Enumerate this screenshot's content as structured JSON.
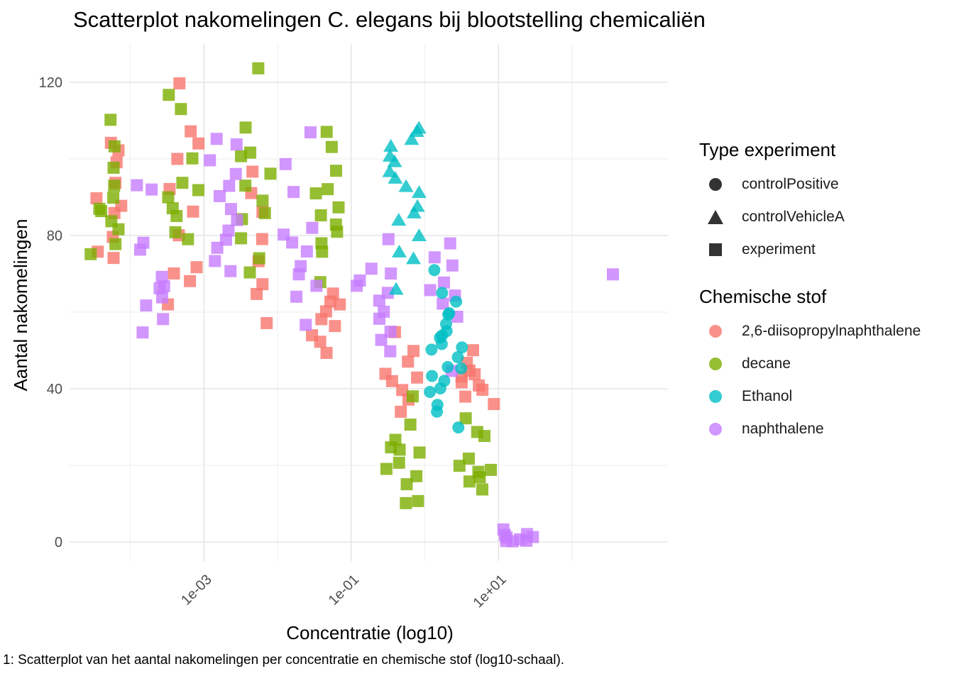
{
  "chart_data": {
    "type": "scatter",
    "title": "Scatterplot nakomelingen C. elegans bij blootstelling chemicaliën",
    "xlabel": "Concentratie (log10)",
    "ylabel": "Aantal nakomelingen",
    "caption": "1: Scatterplot van het aantal nakomelingen per concentratie en chemische stof (log10-schaal).",
    "x_scale": "log10",
    "xlim": [
      1.5e-05,
      2000
    ],
    "ylim": [
      -5,
      130
    ],
    "x_ticks": [
      0.001,
      0.1,
      10
    ],
    "x_tick_labels": [
      "1e-03",
      "1e-01",
      "1e+01"
    ],
    "y_ticks": [
      0,
      40,
      80,
      120
    ],
    "y_tick_labels": [
      "0",
      "40",
      "80",
      "120"
    ],
    "grid": true,
    "shape_legend": {
      "title": "Type experiment",
      "items": [
        {
          "label": "controlPositive",
          "shape": "circle"
        },
        {
          "label": "controlVehicleA",
          "shape": "triangle"
        },
        {
          "label": "experiment",
          "shape": "square"
        }
      ]
    },
    "color_legend": {
      "title": "Chemische stof",
      "items": [
        {
          "label": "2,6-diisopropylnaphthalene",
          "color": "#F8766D"
        },
        {
          "label": "decane",
          "color": "#7CAE00"
        },
        {
          "label": "Ethanol",
          "color": "#00BFC4"
        },
        {
          "label": "naphthalene",
          "color": "#C77CFF"
        }
      ]
    },
    "series": [
      {
        "name": "2,6-diisopropylnaphthalene",
        "color": "#F8766D",
        "shape": "square",
        "points": [
          [
            5e-05,
            74
          ],
          [
            5e-05,
            80
          ],
          [
            5e-05,
            86
          ],
          [
            5e-05,
            90
          ],
          [
            5e-05,
            94
          ],
          [
            5e-05,
            99
          ],
          [
            5e-05,
            102
          ],
          [
            5e-05,
            104
          ],
          [
            5e-05,
            76
          ],
          [
            5e-05,
            88
          ],
          [
            0.0005,
            62
          ],
          [
            0.0005,
            68
          ],
          [
            0.0005,
            70
          ],
          [
            0.0005,
            72
          ],
          [
            0.0005,
            80
          ],
          [
            0.0005,
            86
          ],
          [
            0.0005,
            92
          ],
          [
            0.0005,
            100
          ],
          [
            0.0005,
            104
          ],
          [
            0.0005,
            107
          ],
          [
            0.0005,
            120
          ],
          [
            0.005,
            57
          ],
          [
            0.005,
            65
          ],
          [
            0.005,
            67
          ],
          [
            0.005,
            73
          ],
          [
            0.005,
            79
          ],
          [
            0.005,
            86
          ],
          [
            0.005,
            91
          ],
          [
            0.005,
            97
          ],
          [
            0.05,
            49
          ],
          [
            0.05,
            52
          ],
          [
            0.05,
            56
          ],
          [
            0.05,
            58
          ],
          [
            0.05,
            60
          ],
          [
            0.05,
            62
          ],
          [
            0.05,
            63
          ],
          [
            0.05,
            65
          ],
          [
            0.05,
            54
          ],
          [
            0.5,
            34
          ],
          [
            0.5,
            37
          ],
          [
            0.5,
            40
          ],
          [
            0.5,
            42
          ],
          [
            0.5,
            43
          ],
          [
            0.5,
            44
          ],
          [
            0.5,
            47
          ],
          [
            0.5,
            50
          ],
          [
            0.5,
            55
          ],
          [
            5,
            36
          ],
          [
            5,
            38
          ],
          [
            5,
            40
          ],
          [
            5,
            41
          ],
          [
            5,
            42
          ],
          [
            5,
            43
          ],
          [
            5,
            44
          ],
          [
            5,
            45
          ],
          [
            5,
            47
          ],
          [
            5,
            50
          ]
        ]
      },
      {
        "name": "decane",
        "color": "#7CAE00",
        "shape": "square",
        "points": [
          [
            5e-05,
            75
          ],
          [
            5e-05,
            78
          ],
          [
            5e-05,
            82
          ],
          [
            5e-05,
            84
          ],
          [
            5e-05,
            86
          ],
          [
            5e-05,
            87
          ],
          [
            5e-05,
            90
          ],
          [
            5e-05,
            93
          ],
          [
            5e-05,
            98
          ],
          [
            5e-05,
            103
          ],
          [
            5e-05,
            110
          ],
          [
            0.0005,
            79
          ],
          [
            0.0005,
            81
          ],
          [
            0.0005,
            85
          ],
          [
            0.0005,
            87
          ],
          [
            0.0005,
            90
          ],
          [
            0.0005,
            92
          ],
          [
            0.0005,
            94
          ],
          [
            0.0005,
            100
          ],
          [
            0.0005,
            113
          ],
          [
            0.0005,
            117
          ],
          [
            0.005,
            70
          ],
          [
            0.005,
            74
          ],
          [
            0.005,
            79
          ],
          [
            0.005,
            84
          ],
          [
            0.005,
            86
          ],
          [
            0.005,
            89
          ],
          [
            0.005,
            93
          ],
          [
            0.005,
            96
          ],
          [
            0.005,
            101
          ],
          [
            0.005,
            102
          ],
          [
            0.005,
            108
          ],
          [
            0.005,
            124
          ],
          [
            0.05,
            68
          ],
          [
            0.05,
            76
          ],
          [
            0.05,
            78
          ],
          [
            0.05,
            81
          ],
          [
            0.05,
            83
          ],
          [
            0.05,
            85
          ],
          [
            0.05,
            87
          ],
          [
            0.05,
            91
          ],
          [
            0.05,
            92
          ],
          [
            0.05,
            97
          ],
          [
            0.05,
            103
          ],
          [
            0.05,
            107
          ],
          [
            0.5,
            10
          ],
          [
            0.5,
            11
          ],
          [
            0.5,
            15
          ],
          [
            0.5,
            17
          ],
          [
            0.5,
            19
          ],
          [
            0.5,
            21
          ],
          [
            0.5,
            23
          ],
          [
            0.5,
            24
          ],
          [
            0.5,
            25
          ],
          [
            0.5,
            27
          ],
          [
            0.5,
            31
          ],
          [
            0.5,
            38
          ],
          [
            5,
            14
          ],
          [
            5,
            16
          ],
          [
            5,
            17
          ],
          [
            5,
            18
          ],
          [
            5,
            19
          ],
          [
            5,
            20
          ],
          [
            5,
            22
          ],
          [
            5,
            28
          ],
          [
            5,
            29
          ],
          [
            5,
            32
          ]
        ]
      },
      {
        "name": "naphthalene",
        "color": "#C77CFF",
        "shape": "square",
        "points": [
          [
            0.0002,
            55
          ],
          [
            0.0002,
            58
          ],
          [
            0.0002,
            62
          ],
          [
            0.0002,
            64
          ],
          [
            0.0002,
            66
          ],
          [
            0.0002,
            67
          ],
          [
            0.0002,
            69
          ],
          [
            0.0002,
            76
          ],
          [
            0.0002,
            78
          ],
          [
            0.0002,
            92
          ],
          [
            0.0002,
            93
          ],
          [
            0.002,
            71
          ],
          [
            0.002,
            73
          ],
          [
            0.002,
            77
          ],
          [
            0.002,
            79
          ],
          [
            0.002,
            81
          ],
          [
            0.002,
            84
          ],
          [
            0.002,
            87
          ],
          [
            0.002,
            90
          ],
          [
            0.002,
            93
          ],
          [
            0.002,
            96
          ],
          [
            0.002,
            100
          ],
          [
            0.002,
            104
          ],
          [
            0.002,
            105
          ],
          [
            0.02,
            57
          ],
          [
            0.02,
            64
          ],
          [
            0.02,
            67
          ],
          [
            0.02,
            70
          ],
          [
            0.02,
            72
          ],
          [
            0.02,
            76
          ],
          [
            0.02,
            78
          ],
          [
            0.02,
            80
          ],
          [
            0.02,
            82
          ],
          [
            0.02,
            91
          ],
          [
            0.02,
            99
          ],
          [
            0.02,
            107
          ],
          [
            0.2,
            50
          ],
          [
            0.2,
            53
          ],
          [
            0.2,
            55
          ],
          [
            0.2,
            58
          ],
          [
            0.2,
            60
          ],
          [
            0.2,
            63
          ],
          [
            0.2,
            65
          ],
          [
            0.2,
            67
          ],
          [
            0.2,
            68
          ],
          [
            0.2,
            70
          ],
          [
            0.2,
            71
          ],
          [
            0.2,
            79
          ],
          [
            2,
            45
          ],
          [
            2,
            59
          ],
          [
            2,
            62
          ],
          [
            2,
            64
          ],
          [
            2,
            66
          ],
          [
            2,
            68
          ],
          [
            2,
            72
          ],
          [
            2,
            74
          ],
          [
            2,
            78
          ],
          [
            20,
            0
          ],
          [
            20,
            0
          ],
          [
            20,
            0
          ],
          [
            20,
            1
          ],
          [
            20,
            1
          ],
          [
            20,
            1
          ],
          [
            20,
            2
          ],
          [
            20,
            2
          ],
          [
            20,
            3
          ],
          [
            500,
            70
          ]
        ]
      },
      {
        "name": "Ethanol",
        "color": "#00BFC4",
        "shape": "circle",
        "points": [
          [
            2,
            30
          ],
          [
            2,
            34
          ],
          [
            2,
            36
          ],
          [
            2,
            39
          ],
          [
            2,
            40
          ],
          [
            2,
            42
          ],
          [
            2,
            43
          ],
          [
            2,
            45
          ],
          [
            2,
            46
          ],
          [
            2,
            48
          ],
          [
            2,
            50
          ],
          [
            2,
            51
          ],
          [
            2,
            52
          ],
          [
            2,
            53
          ],
          [
            2,
            54
          ],
          [
            2,
            55
          ],
          [
            2,
            57
          ],
          [
            2,
            59
          ],
          [
            2,
            60
          ],
          [
            2,
            63
          ],
          [
            2,
            65
          ],
          [
            2,
            71
          ]
        ]
      },
      {
        "name": "Ethanol",
        "color": "#00BFC4",
        "shape": "triangle",
        "points": [
          [
            0.5,
            66
          ],
          [
            0.5,
            74
          ],
          [
            0.5,
            76
          ],
          [
            0.5,
            80
          ],
          [
            0.5,
            84
          ],
          [
            0.5,
            86
          ],
          [
            0.5,
            88
          ],
          [
            0.5,
            91
          ],
          [
            0.5,
            93
          ],
          [
            0.5,
            95
          ],
          [
            0.5,
            97
          ],
          [
            0.5,
            99
          ],
          [
            0.5,
            101
          ],
          [
            0.5,
            103
          ],
          [
            0.5,
            105
          ],
          [
            0.5,
            107
          ],
          [
            0.5,
            108
          ]
        ]
      }
    ]
  }
}
